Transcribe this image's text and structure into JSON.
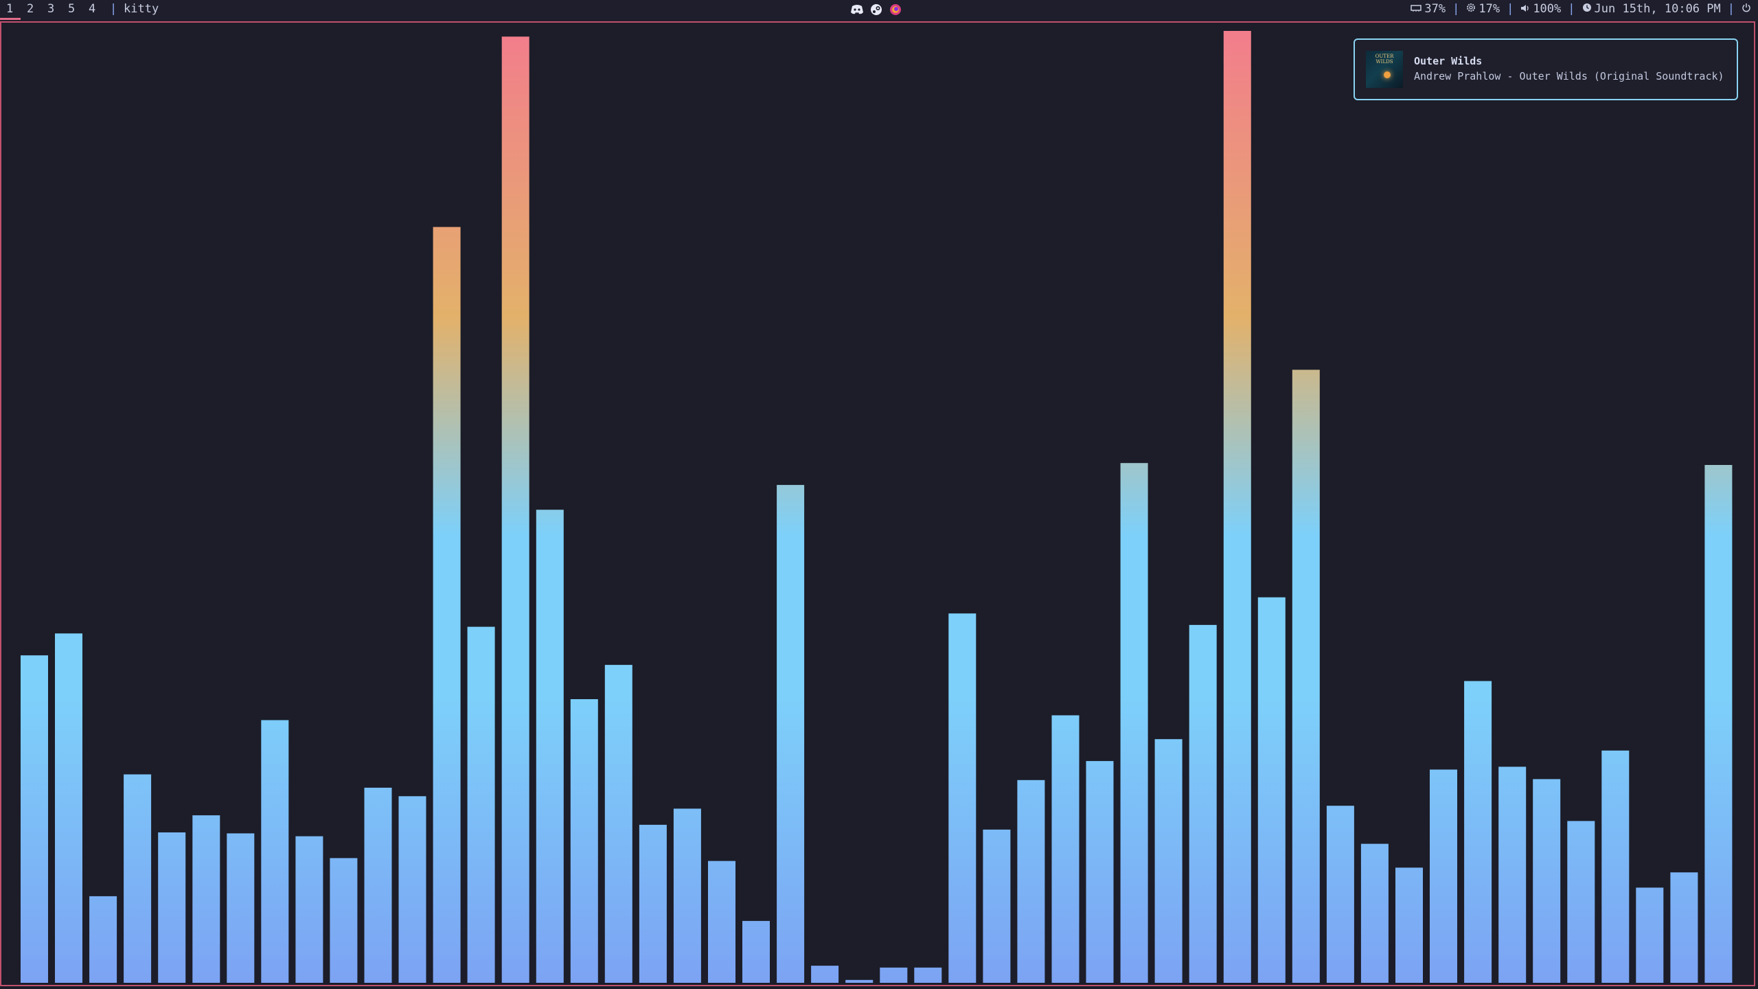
{
  "topbar": {
    "workspaces": [
      "1",
      "2",
      "3",
      "5",
      "4"
    ],
    "active_workspace": "1",
    "separator": "|",
    "window_title": "kitty",
    "tray_icons": [
      "discord-icon",
      "steam-icon",
      "firefox-icon"
    ],
    "status": {
      "memory": "37%",
      "cpu": "17%",
      "volume": "100%",
      "clock": "Jun 15th, 10:06 PM"
    },
    "accent": "#e06c8a"
  },
  "notification": {
    "title": "Outer Wilds",
    "body": "Andrew Prahlow - Outer Wilds (Original Soundtrack)",
    "album_art_text": "OUTER WILDS",
    "border_color": "#8ad3f2"
  },
  "visualizer": {
    "program": "cava",
    "bar_count": 50,
    "levels": [
      0.344,
      0.367,
      0.091,
      0.219,
      0.158,
      0.176,
      0.157,
      0.276,
      0.154,
      0.131,
      0.205,
      0.196,
      0.794,
      0.374,
      0.994,
      0.497,
      0.298,
      0.334,
      0.166,
      0.183,
      0.128,
      0.065,
      0.523,
      0.018,
      0.003,
      0.016,
      0.016,
      0.388,
      0.161,
      0.213,
      0.281,
      0.233,
      0.546,
      0.256,
      0.376,
      1.0,
      0.405,
      0.644,
      0.186,
      0.146,
      0.121,
      0.224,
      0.317,
      0.227,
      0.214,
      0.17,
      0.244,
      0.1,
      0.116,
      0.544
    ],
    "colors": {
      "bottom": "#7ca3f3",
      "middle": "#7dd0fa",
      "upper": "#e3b16a",
      "top": "#f27d8c"
    }
  }
}
